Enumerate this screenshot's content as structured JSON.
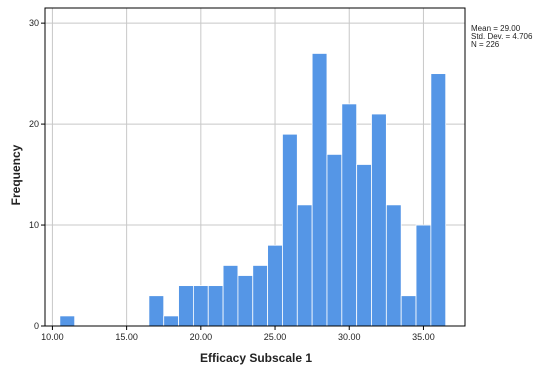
{
  "stats": {
    "mean": "Mean = 29.00",
    "std_dev": "Std. Dev. = 4.706",
    "n": "N = 226"
  },
  "chart_data": {
    "type": "bar",
    "xlabel": "Efficacy Subscale 1",
    "ylabel": "Frequency",
    "xlim": [
      9.5,
      37.8
    ],
    "ylim": [
      0,
      31.5
    ],
    "x_ticks": [
      10,
      15,
      20,
      25,
      30,
      35
    ],
    "x_tick_labels": [
      "10.00",
      "15.00",
      "20.00",
      "25.00",
      "30.00",
      "35.00"
    ],
    "y_ticks": [
      0,
      10,
      20,
      30
    ],
    "y_tick_labels": [
      "0",
      "10",
      "20",
      "30"
    ],
    "grid": true,
    "bar_color": "#5596e6",
    "bin_width": 1,
    "bins": [
      {
        "center": 11,
        "value": 1
      },
      {
        "center": 17,
        "value": 3
      },
      {
        "center": 18,
        "value": 1
      },
      {
        "center": 19,
        "value": 4
      },
      {
        "center": 20,
        "value": 4
      },
      {
        "center": 21,
        "value": 4
      },
      {
        "center": 22,
        "value": 6
      },
      {
        "center": 23,
        "value": 5
      },
      {
        "center": 24,
        "value": 6
      },
      {
        "center": 25,
        "value": 8
      },
      {
        "center": 26,
        "value": 19
      },
      {
        "center": 27,
        "value": 12
      },
      {
        "center": 28,
        "value": 27
      },
      {
        "center": 29,
        "value": 17
      },
      {
        "center": 30,
        "value": 22
      },
      {
        "center": 31,
        "value": 16
      },
      {
        "center": 32,
        "value": 21
      },
      {
        "center": 33,
        "value": 12
      },
      {
        "center": 34,
        "value": 3
      },
      {
        "center": 35,
        "value": 10
      },
      {
        "center": 36,
        "value": 25
      }
    ]
  }
}
